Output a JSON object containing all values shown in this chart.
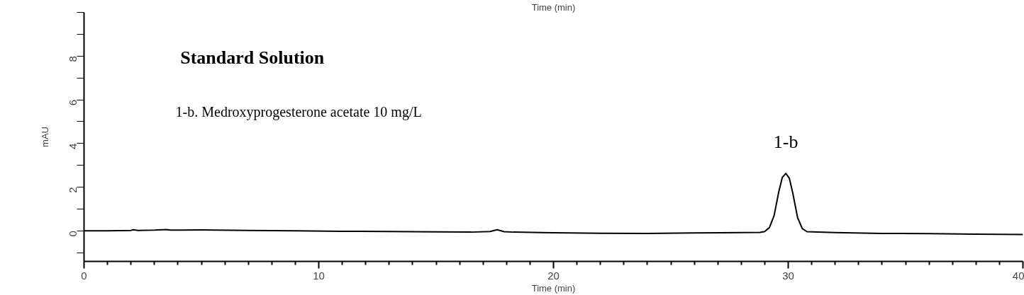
{
  "chart_data": {
    "type": "line",
    "title": "Time (min)",
    "xlabel": "Time (min)",
    "ylabel": "mAU",
    "annotations": [
      "Standard Solution",
      "1-b. Medroxyprogesterone acetate    10 mg/L",
      {
        "text": "1-b",
        "x": 29.9,
        "y": 2.63
      }
    ],
    "series": [
      {
        "color": "#000000",
        "x": [
          0,
          1,
          2,
          2.1,
          2.3,
          3,
          3.5,
          3.7,
          5,
          7,
          9,
          11,
          13,
          15,
          16.5,
          17.3,
          17.6,
          17.9,
          18.3,
          20,
          22,
          24,
          26,
          28,
          28.8,
          29.0,
          29.2,
          29.4,
          29.6,
          29.75,
          29.9,
          30.05,
          30.2,
          30.4,
          30.6,
          30.8,
          32,
          34,
          36,
          38,
          40
        ],
        "values": [
          0.0,
          0.0,
          0.02,
          0.05,
          0.02,
          0.03,
          0.06,
          0.03,
          0.04,
          0.02,
          0.0,
          -0.02,
          -0.03,
          -0.05,
          -0.06,
          -0.03,
          0.05,
          -0.04,
          -0.06,
          -0.09,
          -0.11,
          -0.12,
          -0.1,
          -0.08,
          -0.07,
          -0.03,
          0.15,
          0.7,
          1.8,
          2.45,
          2.63,
          2.4,
          1.7,
          0.6,
          0.1,
          -0.04,
          -0.08,
          -0.12,
          -0.13,
          -0.15,
          -0.17
        ]
      }
    ],
    "xlim": [
      0,
      40
    ],
    "xticks": [
      0,
      {
        "value": 1,
        "label": null
      },
      {
        "value": 2,
        "label": null
      },
      {
        "value": 3,
        "label": null
      },
      {
        "value": 4,
        "label": null
      },
      {
        "value": 5,
        "label": null
      },
      {
        "value": 6,
        "label": null
      },
      {
        "value": 7,
        "label": null
      },
      {
        "value": 8,
        "label": null
      },
      {
        "value": 9,
        "label": null
      },
      10,
      {
        "value": 11,
        "label": null
      },
      {
        "value": 12,
        "label": null
      },
      {
        "value": 13,
        "label": null
      },
      {
        "value": 14,
        "label": null
      },
      {
        "value": 15,
        "label": null
      },
      {
        "value": 16,
        "label": null
      },
      {
        "value": 17,
        "label": null
      },
      {
        "value": 18,
        "label": null
      },
      {
        "value": 19,
        "label": null
      },
      20,
      {
        "value": 21,
        "label": null
      },
      {
        "value": 22,
        "label": null
      },
      {
        "value": 23,
        "label": null
      },
      {
        "value": 24,
        "label": null
      },
      {
        "value": 25,
        "label": null
      },
      {
        "value": 26,
        "label": null
      },
      {
        "value": 27,
        "label": null
      },
      {
        "value": 28,
        "label": null
      },
      {
        "value": 29,
        "label": null
      },
      30,
      {
        "value": 31,
        "label": null
      },
      {
        "value": 32,
        "label": null
      },
      {
        "value": 33,
        "label": null
      },
      {
        "value": 34,
        "label": null
      },
      {
        "value": 35,
        "label": null
      },
      {
        "value": 36,
        "label": null
      },
      {
        "value": 37,
        "label": null
      },
      {
        "value": 38,
        "label": null
      },
      {
        "value": 39,
        "label": null
      },
      40
    ],
    "ylim": [
      -1.4,
      10
    ],
    "yticks": [
      {
        "value": -1,
        "label": null
      },
      0,
      {
        "value": 1,
        "label": null
      },
      2,
      {
        "value": 3,
        "label": null
      },
      4,
      {
        "value": 5,
        "label": null
      },
      6,
      {
        "value": 7,
        "label": null
      },
      8,
      {
        "value": 9,
        "label": null
      },
      {
        "value": 10,
        "label": null
      }
    ],
    "grid": false,
    "marker": "none",
    "line_style": "solid"
  }
}
